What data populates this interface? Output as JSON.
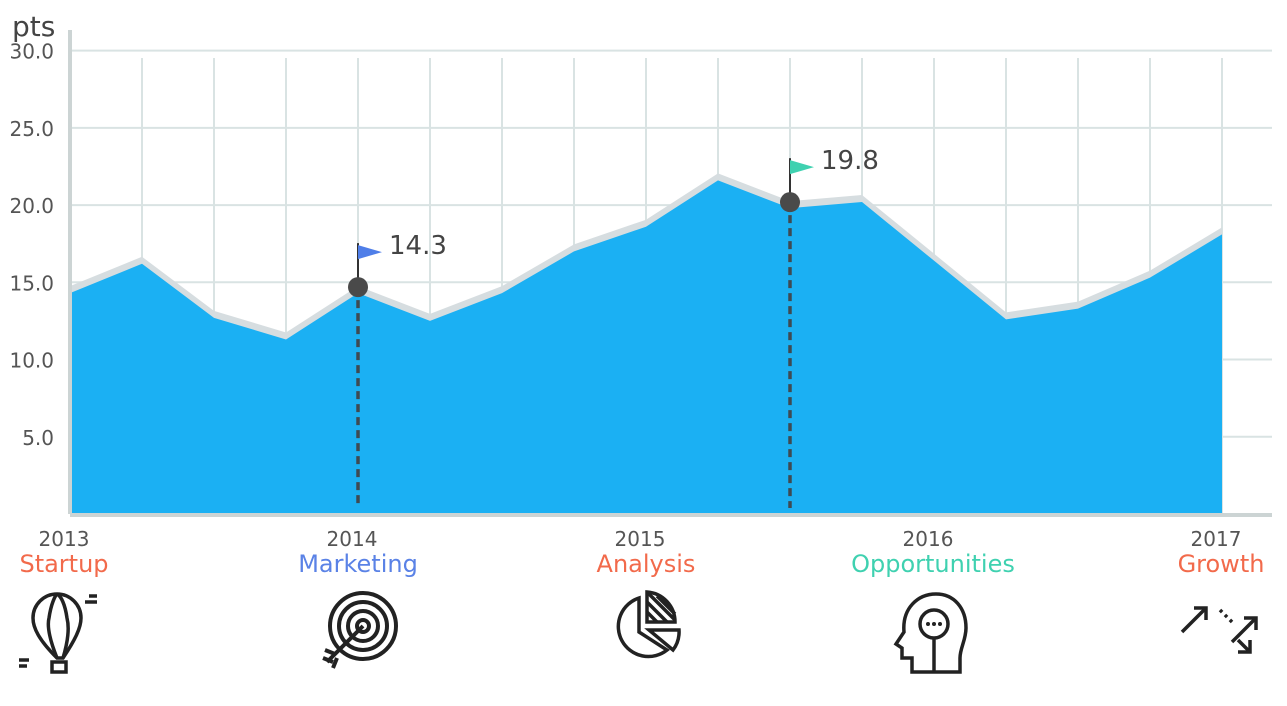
{
  "chart_data": {
    "type": "area",
    "ylabel": "pts",
    "ylim": [
      0,
      32.5
    ],
    "yticks": [
      "5.0",
      "10.0",
      "15.0",
      "20.0",
      "25.0",
      "30.0"
    ],
    "xlim": [
      2013,
      2017.5
    ],
    "xticks": [
      "2013",
      "2014",
      "2015",
      "2016",
      "2017"
    ],
    "grid": true,
    "series": [
      {
        "color": "#1bb0f3",
        "x": [
          2013,
          2013.25,
          2013.5,
          2013.75,
          2014,
          2014.25,
          2014.5,
          2014.75,
          2015,
          2015.25,
          2015.5,
          2015.75,
          2016,
          2016.25,
          2016.5,
          2016.75,
          2017
        ],
        "values": [
          14.3,
          16.2,
          12.7,
          11.3,
          14.3,
          12.5,
          14.3,
          17.0,
          18.6,
          21.6,
          19.8,
          20.2,
          16.4,
          12.6,
          13.3,
          15.3,
          18.1
        ]
      }
    ],
    "annotations": [
      {
        "x": 2014,
        "value": 14.3,
        "label": "14.3",
        "flag_color": "#4f7ee8"
      },
      {
        "x": 2015.5,
        "value": 19.8,
        "label": "19.8",
        "flag_color": "#3fd1b0"
      }
    ]
  },
  "stages": [
    {
      "year": "2013",
      "label": "Startup",
      "color": "#f26a4b",
      "icon": "hot-air-balloon-icon"
    },
    {
      "year": "2014",
      "label": "Marketing",
      "color": "#5a82e6",
      "icon": "target-arrow-icon"
    },
    {
      "year": "2015",
      "label": "Analysis",
      "color": "#f26a4b",
      "icon": "pie-chart-icon"
    },
    {
      "year": "2016",
      "label": "Opportunities",
      "color": "#3fd1b0",
      "icon": "head-thought-icon"
    },
    {
      "year": "2017",
      "label": "Growth",
      "color": "#f26a4b",
      "icon": "growth-arrows-icon"
    }
  ]
}
